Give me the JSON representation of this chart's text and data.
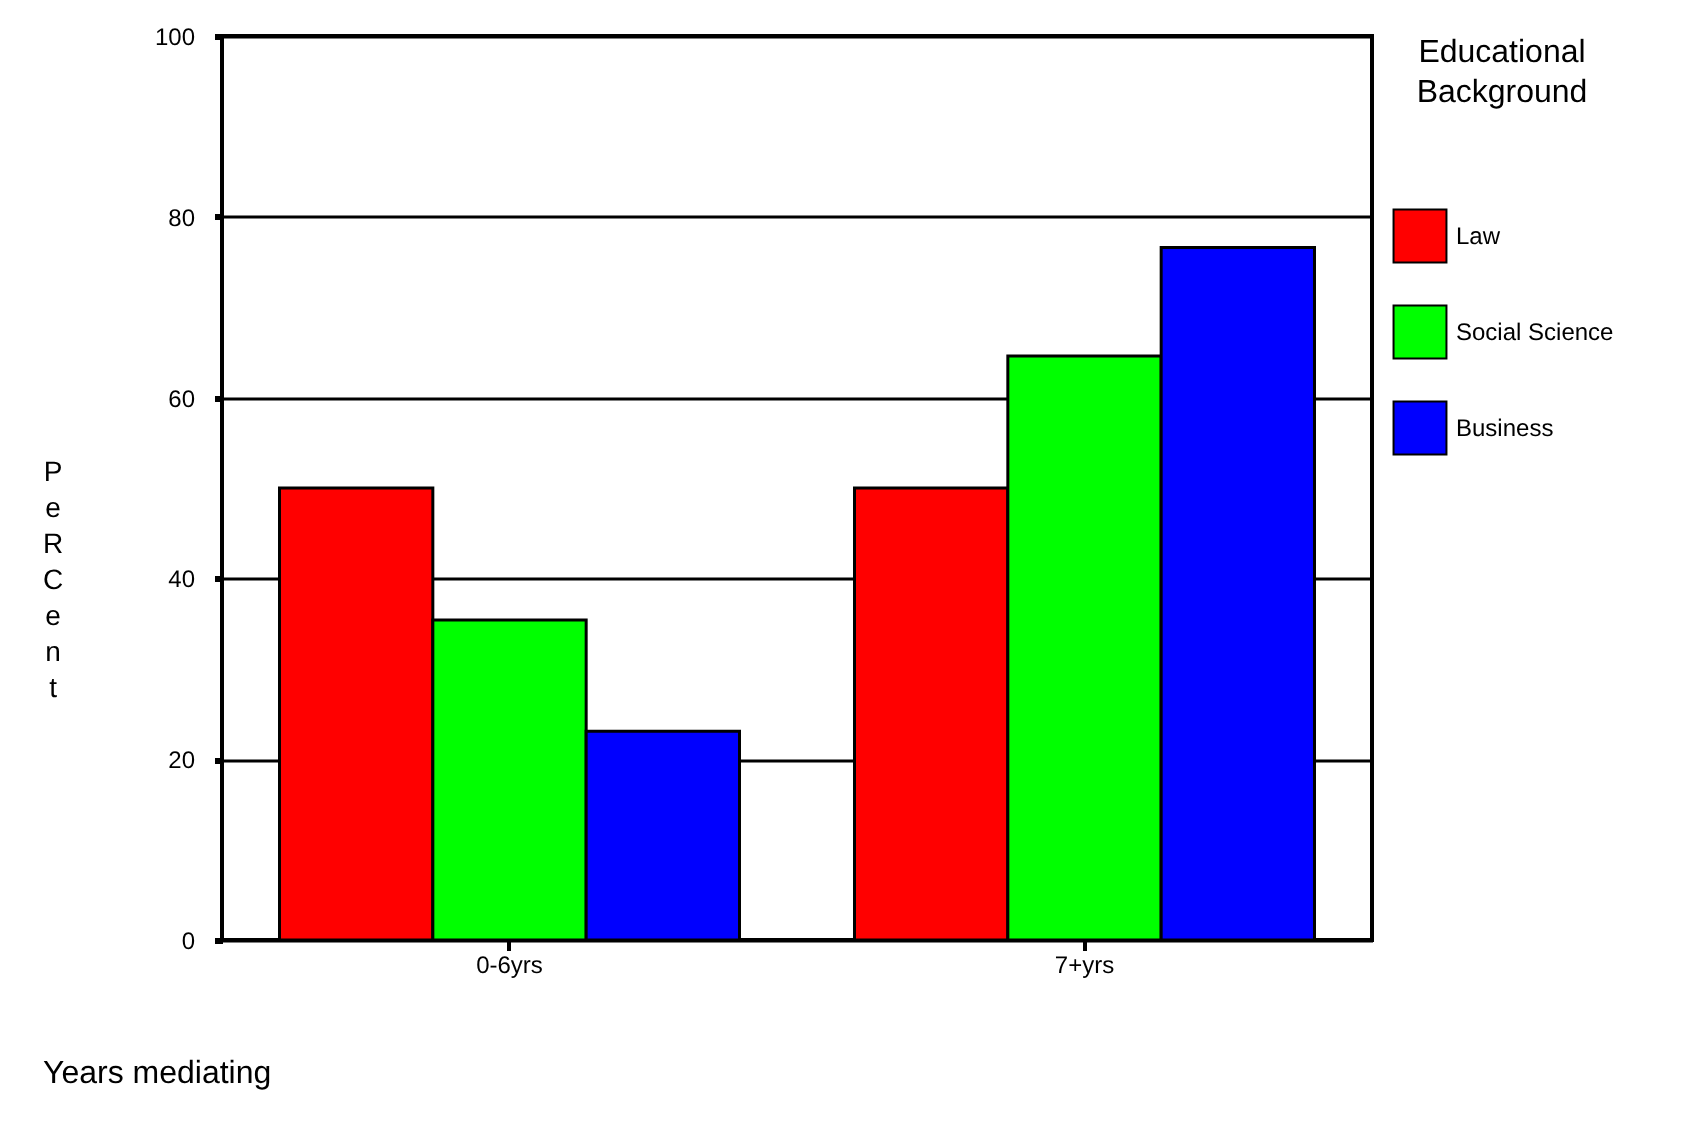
{
  "chart_data": {
    "type": "bar",
    "xlabel": "Years mediating",
    "ylabel": "PeRCent",
    "legend_title": "Educational Background",
    "categories": [
      "0-6yrs",
      "7+yrs"
    ],
    "series": [
      {
        "name": "Law",
        "color": "#ff0000",
        "values": [
          50,
          50
        ]
      },
      {
        "name": "Social Science",
        "color": "#00ff00",
        "values": [
          35.4,
          64.6
        ]
      },
      {
        "name": "Business",
        "color": "#0000ff",
        "values": [
          23.1,
          76.6
        ]
      }
    ],
    "ylim": [
      0,
      100
    ],
    "yticks": [
      0,
      20,
      40,
      60,
      80,
      100
    ],
    "grid": "y",
    "legend": "right"
  }
}
